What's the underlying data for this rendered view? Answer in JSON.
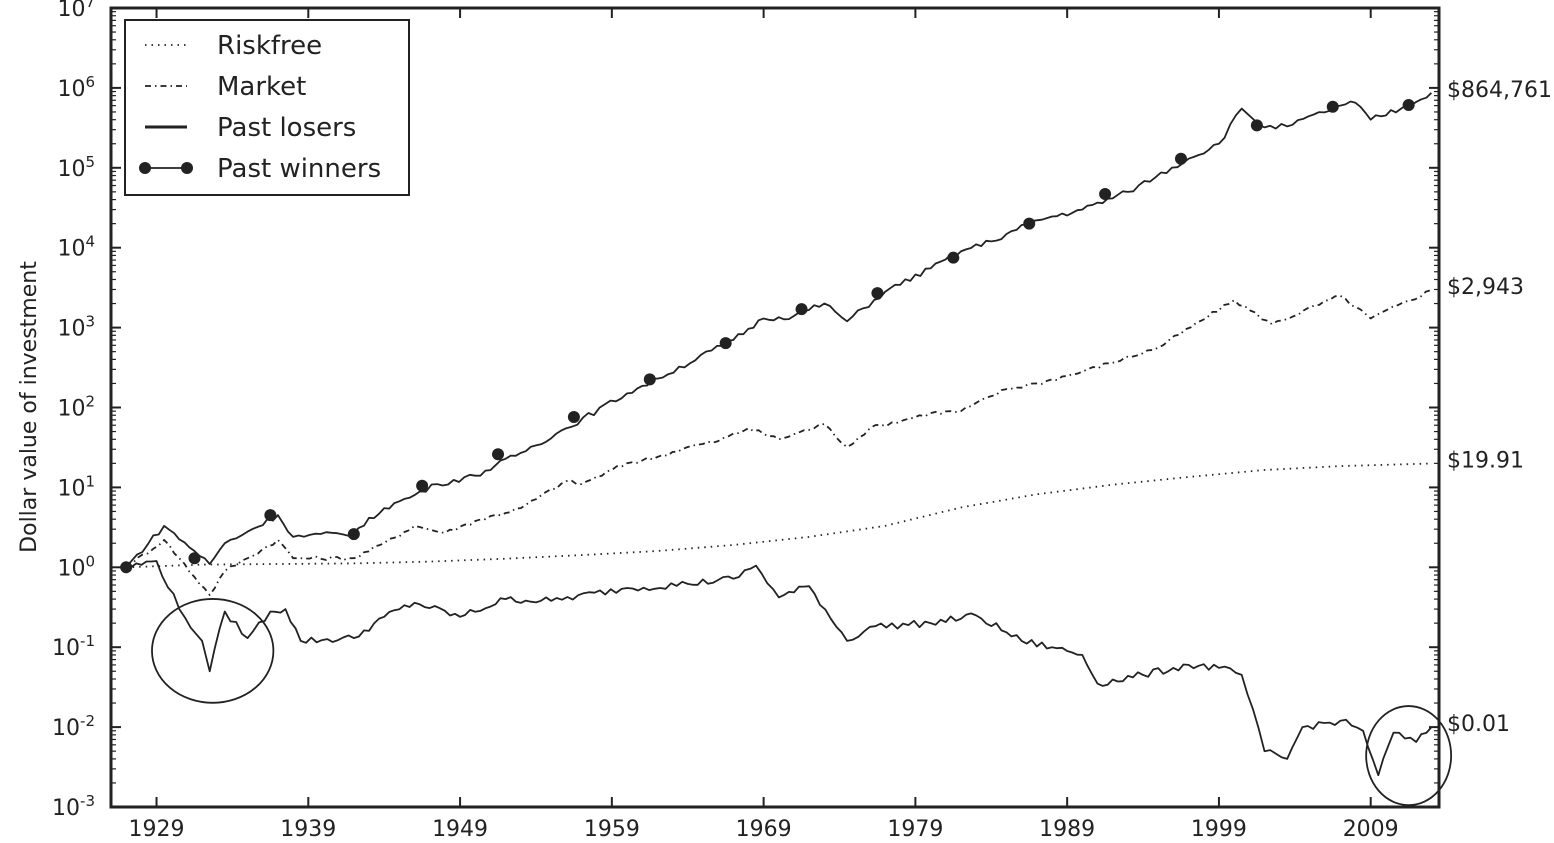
{
  "chart_data": {
    "type": "line",
    "title": "",
    "xlabel": "",
    "ylabel": "Dollar value of investment",
    "yscale": "log",
    "ylim": [
      0.001,
      10000000
    ],
    "xlim": [
      1926,
      2013.5
    ],
    "grid": false,
    "legend_position": "top-left",
    "x_ticks": [
      "1929",
      "1939",
      "1949",
      "1959",
      "1969",
      "1979",
      "1989",
      "1999",
      "2009"
    ],
    "y_ticks": [
      {
        "base": "10",
        "exp": "-3",
        "value": 0.001
      },
      {
        "base": "10",
        "exp": "-2",
        "value": 0.01
      },
      {
        "base": "10",
        "exp": "-1",
        "value": 0.1
      },
      {
        "base": "10",
        "exp": "0",
        "value": 1
      },
      {
        "base": "10",
        "exp": "1",
        "value": 10
      },
      {
        "base": "10",
        "exp": "2",
        "value": 100
      },
      {
        "base": "10",
        "exp": "3",
        "value": 1000
      },
      {
        "base": "10",
        "exp": "4",
        "value": 10000
      },
      {
        "base": "10",
        "exp": "5",
        "value": 100000
      },
      {
        "base": "10",
        "exp": "6",
        "value": 1000000
      },
      {
        "base": "10",
        "exp": "7",
        "value": 10000000
      }
    ],
    "series": [
      {
        "name": "Riskfree",
        "style": "dotted",
        "end_label": "$19.91",
        "x": [
          1927,
          1932,
          1937,
          1942,
          1947,
          1952,
          1957,
          1962,
          1967,
          1972,
          1977,
          1982,
          1987,
          1992,
          1997,
          2002,
          2007,
          2013
        ],
        "y": [
          1.0,
          1.08,
          1.1,
          1.12,
          1.18,
          1.28,
          1.42,
          1.6,
          1.9,
          2.4,
          3.3,
          5.6,
          8.2,
          10.8,
          13.5,
          16.5,
          18.5,
          19.91
        ]
      },
      {
        "name": "Market",
        "style": "dashdot",
        "end_label": "$2,943",
        "x": [
          1927,
          1929.5,
          1932.5,
          1933.5,
          1935,
          1937,
          1938,
          1942,
          1944,
          1946,
          1948,
          1950,
          1953,
          1956,
          1957,
          1960,
          1962,
          1964,
          1966,
          1968,
          1970,
          1973,
          1974.5,
          1976,
          1980,
          1982,
          1985,
          1987,
          1990,
          1995,
          2000,
          2002.5,
          2007,
          2009,
          2013
        ],
        "y": [
          1.0,
          2.2,
          0.45,
          0.9,
          1.3,
          2.2,
          1.3,
          1.3,
          2.0,
          3.3,
          2.7,
          3.8,
          5.5,
          12,
          11,
          20,
          24,
          32,
          38,
          55,
          40,
          62,
          32,
          55,
          85,
          90,
          170,
          200,
          280,
          560,
          2200,
          1100,
          2500,
          1300,
          2943
        ]
      },
      {
        "name": "Past losers",
        "style": "solid",
        "end_label": "$0.01",
        "x": [
          1927,
          1929,
          1930.5,
          1932,
          1932.5,
          1933.5,
          1935,
          1936.5,
          1937.5,
          1938.5,
          1942,
          1944,
          1946,
          1949,
          1952,
          1955,
          1960,
          1964,
          1967,
          1968.5,
          1970,
          1972,
          1974.5,
          1976,
          1980,
          1983,
          1986,
          1988,
          1990,
          1991,
          1994,
          1997,
          1999,
          2000.5,
          2002,
          2003.5,
          2004.5,
          2007,
          2008.5,
          2009.5,
          2010.5,
          2012,
          2013
        ],
        "y": [
          1.0,
          1.2,
          0.3,
          0.12,
          0.05,
          0.28,
          0.13,
          0.28,
          0.3,
          0.12,
          0.13,
          0.24,
          0.36,
          0.24,
          0.4,
          0.38,
          0.55,
          0.62,
          0.72,
          1.05,
          0.42,
          0.58,
          0.12,
          0.18,
          0.2,
          0.25,
          0.12,
          0.1,
          0.08,
          0.035,
          0.045,
          0.06,
          0.055,
          0.045,
          0.005,
          0.004,
          0.01,
          0.012,
          0.009,
          0.0025,
          0.0085,
          0.0065,
          0.01
        ]
      },
      {
        "name": "Past winners",
        "style": "solid-markers",
        "end_label": "$864,761",
        "x": [
          1927,
          1929.5,
          1931.5,
          1932.5,
          1933.5,
          1935,
          1937,
          1938,
          1942,
          1944,
          1946,
          1947.5,
          1950,
          1953,
          1956,
          1960,
          1962,
          1967,
          1969,
          1971,
          1973,
          1974.5,
          1977,
          1980,
          1982,
          1984,
          1987,
          1990,
          1993,
          1997,
          1999,
          2000.5,
          2002,
          2003.5,
          2007,
          2008,
          2009,
          2011,
          2013
        ],
        "y": [
          1.0,
          3.3,
          1.6,
          1.1,
          2.0,
          2.8,
          4.5,
          2.4,
          2.7,
          5.5,
          8.0,
          11,
          14,
          27,
          55,
          150,
          230,
          700,
          1300,
          1400,
          2000,
          1200,
          2800,
          5500,
          9000,
          12000,
          22000,
          30000,
          50000,
          130000,
          200000,
          550000,
          320000,
          330000,
          600000,
          650000,
          400000,
          550000,
          864761
        ],
        "markers_x": [
          1927,
          1931.5,
          1936.5,
          1942,
          1946.5,
          1951.5,
          1956.5,
          1961.5,
          1966.5,
          1971.5,
          1976.5,
          1981.5,
          1986.5,
          1991.5,
          1996.5,
          2001.5,
          2006.5,
          2011.5
        ],
        "markers_y": [
          1.0,
          1.3,
          4.5,
          2.6,
          10.5,
          26,
          76,
          225,
          640,
          1700,
          2700,
          7500,
          20000,
          47000,
          130000,
          340000,
          580000,
          610000
        ]
      }
    ],
    "annotations": [
      {
        "type": "ellipse",
        "x_center": 1932.7,
        "x_radius": 4.0,
        "y_center": 0.09,
        "y_radius_decades": 0.65
      },
      {
        "type": "ellipse",
        "x_center": 2011.5,
        "x_radius": 2.8,
        "y_center": 0.0044,
        "y_radius_decades": 0.62
      }
    ]
  }
}
